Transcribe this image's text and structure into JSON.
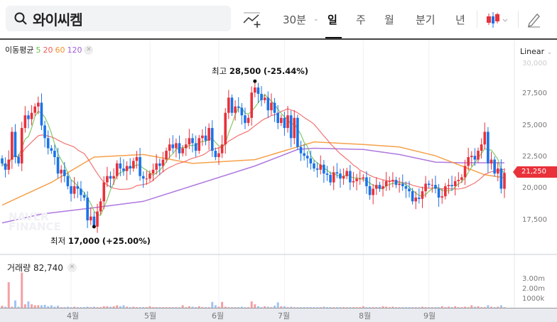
{
  "header": {
    "search_value": "와이씨켐",
    "tabs": [
      {
        "label": "30분"
      },
      {
        "label": "일"
      },
      {
        "label": "주"
      },
      {
        "label": "월"
      },
      {
        "label": "분기"
      },
      {
        "label": "년"
      }
    ],
    "active_tab": "일",
    "icons": [
      "search-icon",
      "indicator-add-icon",
      "candle-type-icon",
      "pencil-icon"
    ]
  },
  "ma_legend": {
    "title": "이동평균",
    "periods": [
      "5",
      "20",
      "60",
      "120"
    ],
    "colors": [
      "#6cc04a",
      "#f05a5a",
      "#f5912a",
      "#a160d8"
    ]
  },
  "scale_label": "Linear",
  "watermark": "NAVER FINANCE",
  "chart_data": {
    "type": "candlestick",
    "y_ticks": [
      "30,000",
      "27,500",
      "25,000",
      "22,500",
      "20,000",
      "17,500"
    ],
    "ylim": [
      15500,
      30500
    ],
    "x_tick_labels": [
      "4월",
      "5월",
      "6월",
      "7월",
      "8월",
      "9월"
    ],
    "x_tick_indices": [
      21,
      45,
      66,
      86,
      110,
      130
    ],
    "current_price": "21,250",
    "up_color": "#e8313a",
    "down_color": "#1a73e8",
    "closes": [
      22000,
      21500,
      22300,
      24500,
      22500,
      22000,
      24800,
      25800,
      25500,
      26000,
      26500,
      26800,
      25000,
      24000,
      23200,
      23000,
      22500,
      21200,
      21500,
      21000,
      20200,
      19600,
      20200,
      20000,
      19500,
      19300,
      17500,
      17800,
      17000,
      18200,
      19000,
      20500,
      21000,
      20800,
      21000,
      22000,
      21600,
      21400,
      21800,
      21600,
      22200,
      22500,
      21000,
      20800,
      20800,
      21200,
      21500,
      22000,
      21800,
      22300,
      23000,
      23500,
      23200,
      23600,
      22800,
      23200,
      23500,
      24000,
      23600,
      23000,
      24000,
      24200,
      23800,
      24800,
      23000,
      22500,
      22800,
      23500,
      26000,
      27200,
      26000,
      26500,
      26400,
      25800,
      25200,
      25600,
      27600,
      28000,
      27500,
      27000,
      27200,
      26200,
      26800,
      26000,
      25200,
      25600,
      24800,
      25800,
      24000,
      25600,
      23300,
      22800,
      22600,
      22400,
      22000,
      21600,
      21500,
      21900,
      21200,
      21100,
      20500,
      21300,
      21200,
      20800,
      21000,
      21400,
      20500,
      20600,
      20800,
      20800,
      20900,
      20200,
      19500,
      20000,
      20300,
      20000,
      20200,
      20600,
      20600,
      20700,
      20300,
      20400,
      20200,
      20000,
      19800,
      19000,
      19300,
      19200,
      19800,
      20400,
      20300,
      20300,
      20000,
      19300,
      19400,
      20200,
      20300,
      20200,
      20600,
      20700,
      20900,
      21800,
      22500,
      22600,
      22300,
      23000,
      23500,
      24500,
      22000,
      22300,
      21200,
      21600,
      20000,
      21250
    ],
    "high_annotation": {
      "label": "최고",
      "value": "28,500",
      "change": "(-25.44%)",
      "index": 77,
      "price": 28500
    },
    "low_annotation": {
      "label": "최저",
      "value": "17,000",
      "change": "(+25.00%)",
      "index": 28,
      "price": 17000
    },
    "ma60": [
      [
        0,
        18700
      ],
      [
        15,
        20500
      ],
      [
        28,
        22500
      ],
      [
        43,
        22700
      ],
      [
        58,
        22000
      ],
      [
        77,
        22300
      ],
      [
        95,
        23700
      ],
      [
        110,
        23500
      ],
      [
        121,
        23300
      ],
      [
        132,
        22600
      ],
      [
        140,
        21800
      ],
      [
        147,
        21100
      ],
      [
        153,
        20870
      ]
    ],
    "ma120": [
      [
        0,
        17300
      ],
      [
        12,
        18000
      ],
      [
        28,
        18500
      ],
      [
        43,
        19000
      ],
      [
        60,
        20400
      ],
      [
        77,
        21800
      ],
      [
        90,
        23100
      ],
      [
        95,
        23200
      ],
      [
        110,
        23100
      ],
      [
        121,
        22700
      ],
      [
        132,
        22100
      ],
      [
        140,
        22050
      ],
      [
        153,
        22050
      ]
    ],
    "volume": {
      "label": "거래량",
      "last": "82,740",
      "y_ticks": [
        "3.00m",
        "2.00m",
        "1000k"
      ],
      "values_k": [
        250,
        150,
        2700,
        150,
        800,
        150,
        3700,
        400,
        700,
        400,
        300,
        300,
        300,
        350,
        200,
        300,
        150,
        250,
        100,
        100,
        150,
        100,
        150,
        100,
        100,
        100,
        150,
        100,
        150,
        100,
        100,
        200,
        200,
        150,
        200,
        300,
        200,
        300,
        150,
        100,
        150,
        100,
        100,
        100,
        100,
        200,
        100,
        100,
        100,
        100,
        100,
        100,
        100,
        100,
        100,
        300,
        100,
        200,
        150,
        100,
        200,
        100,
        100,
        100,
        650,
        300,
        150,
        650,
        150,
        100,
        100,
        100,
        100,
        150,
        100,
        100,
        700,
        400,
        200,
        100,
        200,
        150,
        100,
        250,
        600,
        200,
        200,
        100,
        150,
        100,
        100,
        100,
        100,
        100,
        100,
        100,
        100,
        100,
        150,
        100,
        100,
        100,
        100,
        100,
        100,
        100,
        100,
        100,
        100,
        100,
        200,
        100,
        100,
        100,
        100,
        100,
        200,
        150,
        100,
        150,
        100,
        100,
        100,
        100,
        100,
        100,
        100,
        100,
        150,
        100,
        100,
        100,
        100,
        100,
        200,
        100,
        150,
        100,
        200,
        100,
        100,
        150,
        100,
        300,
        150,
        200,
        100,
        100,
        300,
        150,
        100,
        150,
        300,
        100
      ]
    }
  }
}
